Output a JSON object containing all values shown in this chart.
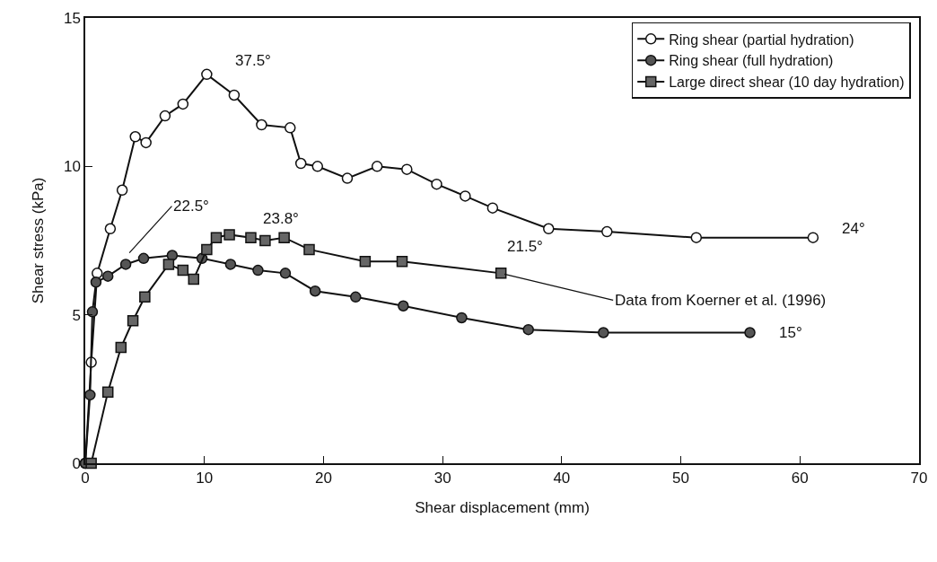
{
  "chart_data": {
    "type": "line",
    "xlabel": "Shear displacement (mm)",
    "ylabel": "Shear stress (kPa)",
    "xlim": [
      0,
      70
    ],
    "xticks": [
      0,
      10,
      20,
      30,
      40,
      50,
      60,
      70
    ],
    "ylim": [
      0,
      15
    ],
    "yticks": [
      0,
      5,
      10,
      15
    ],
    "grid": false,
    "legend": "top right",
    "line_style": "solid",
    "series": [
      {
        "name": "Ring shear (partial hydration)",
        "color": "#ffffff",
        "marker": "circle",
        "x": [
          0,
          0.5,
          1.0,
          2.1,
          3.1,
          4.2,
          5.1,
          6.7,
          8.2,
          10.2,
          12.5,
          14.8,
          17.2,
          18.1,
          19.5,
          22.0,
          24.5,
          27.0,
          29.5,
          31.9,
          34.2,
          38.9,
          43.8,
          51.3,
          61.1
        ],
        "values": [
          0,
          3.4,
          6.4,
          7.9,
          9.2,
          11.0,
          10.8,
          11.7,
          12.1,
          13.1,
          12.4,
          11.4,
          11.3,
          10.1,
          10.0,
          9.6,
          10.0,
          9.9,
          9.4,
          9.0,
          8.6,
          7.9,
          7.8,
          7.6,
          7.6
        ]
      },
      {
        "name": "Ring shear (full hydration)",
        "color": "#555555",
        "marker": "circle",
        "x": [
          0,
          0.4,
          0.6,
          0.9,
          1.9,
          3.4,
          4.9,
          7.3,
          9.8,
          12.2,
          14.5,
          16.8,
          19.3,
          22.7,
          26.7,
          31.6,
          37.2,
          43.5,
          55.8
        ],
        "values": [
          0,
          2.3,
          5.1,
          6.1,
          6.3,
          6.7,
          6.9,
          7.0,
          6.9,
          6.7,
          6.5,
          6.4,
          5.8,
          5.6,
          5.3,
          4.9,
          4.5,
          4.4,
          4.4
        ]
      },
      {
        "name": "Large direct shear (10 day hydration)",
        "color": "#666666",
        "marker": "square",
        "x": [
          0.5,
          1.9,
          3.0,
          4.0,
          5.0,
          7.0,
          8.2,
          9.1,
          10.2,
          11.0,
          12.1,
          13.9,
          15.1,
          16.7,
          18.8,
          23.5,
          26.6,
          34.9
        ],
        "values": [
          0,
          2.4,
          3.9,
          4.8,
          5.6,
          6.7,
          6.5,
          6.2,
          7.2,
          7.6,
          7.7,
          7.6,
          7.5,
          7.6,
          7.2,
          6.8,
          6.8,
          6.4
        ]
      }
    ],
    "annotations": [
      {
        "text": "37.5°",
        "x": 10.2,
        "y": 13.1
      },
      {
        "text": "22.5°",
        "x": 3.5,
        "y": 7.0
      },
      {
        "text": "23.8°",
        "x": 12.1,
        "y": 7.7
      },
      {
        "text": "21.5°",
        "x": 34.9,
        "y": 6.4
      },
      {
        "text": "Data from Koerner et al. (1996)",
        "x": 34.9,
        "y": 6.4
      },
      {
        "text": "24°",
        "x": 61.1,
        "y": 7.6
      },
      {
        "text": "15°",
        "x": 55.8,
        "y": 4.4
      }
    ]
  }
}
